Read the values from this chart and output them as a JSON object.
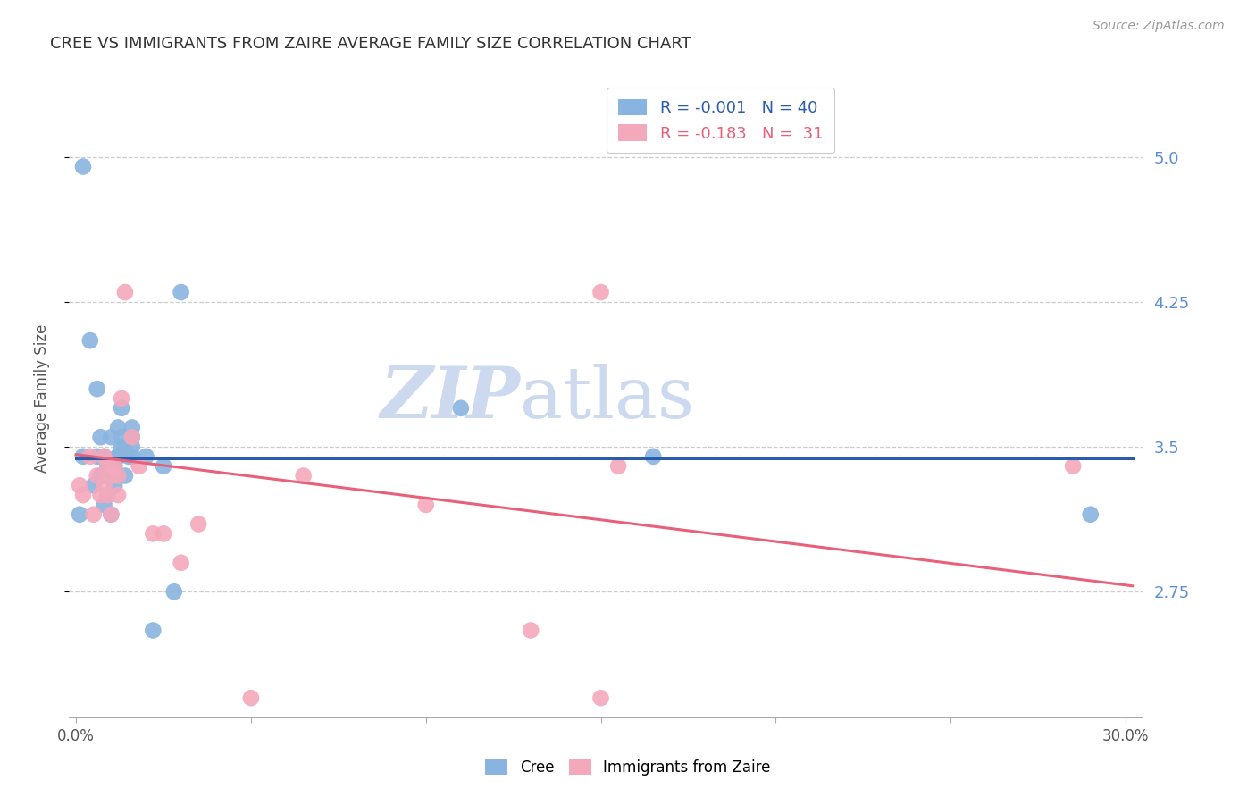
{
  "title": "CREE VS IMMIGRANTS FROM ZAIRE AVERAGE FAMILY SIZE CORRELATION CHART",
  "source": "Source: ZipAtlas.com",
  "ylabel": "Average Family Size",
  "yticks": [
    2.75,
    3.5,
    4.25,
    5.0
  ],
  "ylim": [
    2.1,
    5.4
  ],
  "xlim": [
    -0.002,
    0.305
  ],
  "xticks": [
    0.0,
    0.05,
    0.1,
    0.15,
    0.2,
    0.25,
    0.3
  ],
  "xtick_labels": [
    "0.0%",
    "",
    "",
    "",
    "",
    "",
    "30.0%"
  ],
  "legend_blue_r": "R = -0.001",
  "legend_blue_n": "N = 40",
  "legend_pink_r": "R = -0.183",
  "legend_pink_n": "N =  31",
  "blue_color": "#8ab4e0",
  "pink_color": "#f4a8bb",
  "line_blue_color": "#2a5caa",
  "line_pink_color": "#e8607a",
  "watermark_zip": "ZIP",
  "watermark_atlas": "atlas",
  "watermark_color": "#ccd9ef",
  "background_color": "#ffffff",
  "grid_color": "#cccccc",
  "title_color": "#333333",
  "right_axis_color": "#5b8dd9",
  "cree_points_x": [
    0.002,
    0.001,
    0.004,
    0.005,
    0.006,
    0.006,
    0.007,
    0.007,
    0.008,
    0.008,
    0.009,
    0.009,
    0.01,
    0.01,
    0.01,
    0.011,
    0.011,
    0.012,
    0.012,
    0.013,
    0.013,
    0.014,
    0.014,
    0.015,
    0.016,
    0.016,
    0.016,
    0.02,
    0.022,
    0.025,
    0.028,
    0.03,
    0.11,
    0.165,
    0.29,
    0.002,
    0.008,
    0.012,
    0.013,
    0.016
  ],
  "cree_points_y": [
    4.95,
    3.15,
    4.05,
    3.3,
    3.45,
    3.8,
    3.35,
    3.55,
    3.2,
    3.45,
    3.25,
    3.4,
    3.15,
    3.35,
    3.55,
    3.4,
    3.3,
    3.6,
    3.45,
    3.7,
    3.55,
    3.5,
    3.35,
    3.45,
    3.55,
    3.6,
    3.5,
    3.45,
    2.55,
    3.4,
    2.75,
    4.3,
    3.7,
    3.45,
    3.15,
    3.45,
    3.35,
    3.45,
    3.5,
    3.45
  ],
  "zaire_points_x": [
    0.001,
    0.002,
    0.004,
    0.005,
    0.006,
    0.007,
    0.008,
    0.008,
    0.009,
    0.009,
    0.01,
    0.01,
    0.011,
    0.012,
    0.012,
    0.013,
    0.014,
    0.016,
    0.018,
    0.022,
    0.025,
    0.03,
    0.035,
    0.05,
    0.065,
    0.1,
    0.13,
    0.155,
    0.285,
    0.15,
    0.15
  ],
  "zaire_points_y": [
    3.3,
    3.25,
    3.45,
    3.15,
    3.35,
    3.25,
    3.3,
    3.45,
    3.25,
    3.4,
    3.15,
    3.35,
    3.4,
    3.25,
    3.35,
    3.75,
    4.3,
    3.55,
    3.4,
    3.05,
    3.05,
    2.9,
    3.1,
    2.2,
    3.35,
    3.2,
    2.55,
    3.4,
    3.4,
    4.3,
    2.2
  ],
  "blue_line_x": [
    0.0,
    0.302
  ],
  "blue_line_y": [
    3.44,
    3.44
  ],
  "pink_line_x": [
    0.0,
    0.302
  ],
  "pink_line_y": [
    3.46,
    2.78
  ]
}
